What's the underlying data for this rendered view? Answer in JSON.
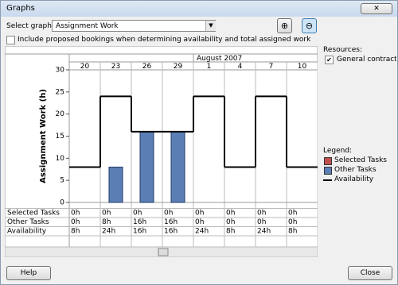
{
  "window": {
    "title": "Graphs"
  },
  "select_label": "Select graph:",
  "select_value": "Assignment Work",
  "checkbox_label": "Include proposed bookings when determining availability and total assigned work",
  "resources": {
    "label": "Resources:",
    "items": [
      "General contractor"
    ]
  },
  "legend_title": "Legend:",
  "buttons": {
    "help": "Help",
    "close": "Close"
  },
  "chart_data": {
    "type": "bar",
    "y_label": "Assignment Work (h)",
    "period": "August 2007",
    "categories": [
      "20",
      "23",
      "26",
      "29",
      "1",
      "4",
      "7",
      "10"
    ],
    "ylim": [
      0,
      30
    ],
    "yticks": [
      0,
      5,
      10,
      15,
      20,
      25,
      30
    ],
    "series": [
      {
        "name": "Selected Tasks",
        "color": "#c0504d",
        "mark": "bar",
        "values": [
          0,
          0,
          0,
          0,
          0,
          0,
          0,
          0
        ],
        "value_labels": [
          "0h",
          "0h",
          "0h",
          "0h",
          "0h",
          "0h",
          "0h",
          "0h"
        ]
      },
      {
        "name": "Other Tasks",
        "color": "#5b7fb5",
        "mark": "bar",
        "values": [
          0,
          8,
          16,
          16,
          0,
          0,
          0,
          0
        ],
        "value_labels": [
          "0h",
          "8h",
          "16h",
          "16h",
          "0h",
          "0h",
          "0h",
          "0h"
        ]
      },
      {
        "name": "Availability",
        "color": "#000000",
        "mark": "step",
        "values": [
          8,
          24,
          16,
          16,
          24,
          8,
          24,
          8
        ],
        "value_labels": [
          "8h",
          "24h",
          "16h",
          "16h",
          "24h",
          "8h",
          "24h",
          "8h"
        ]
      }
    ]
  }
}
